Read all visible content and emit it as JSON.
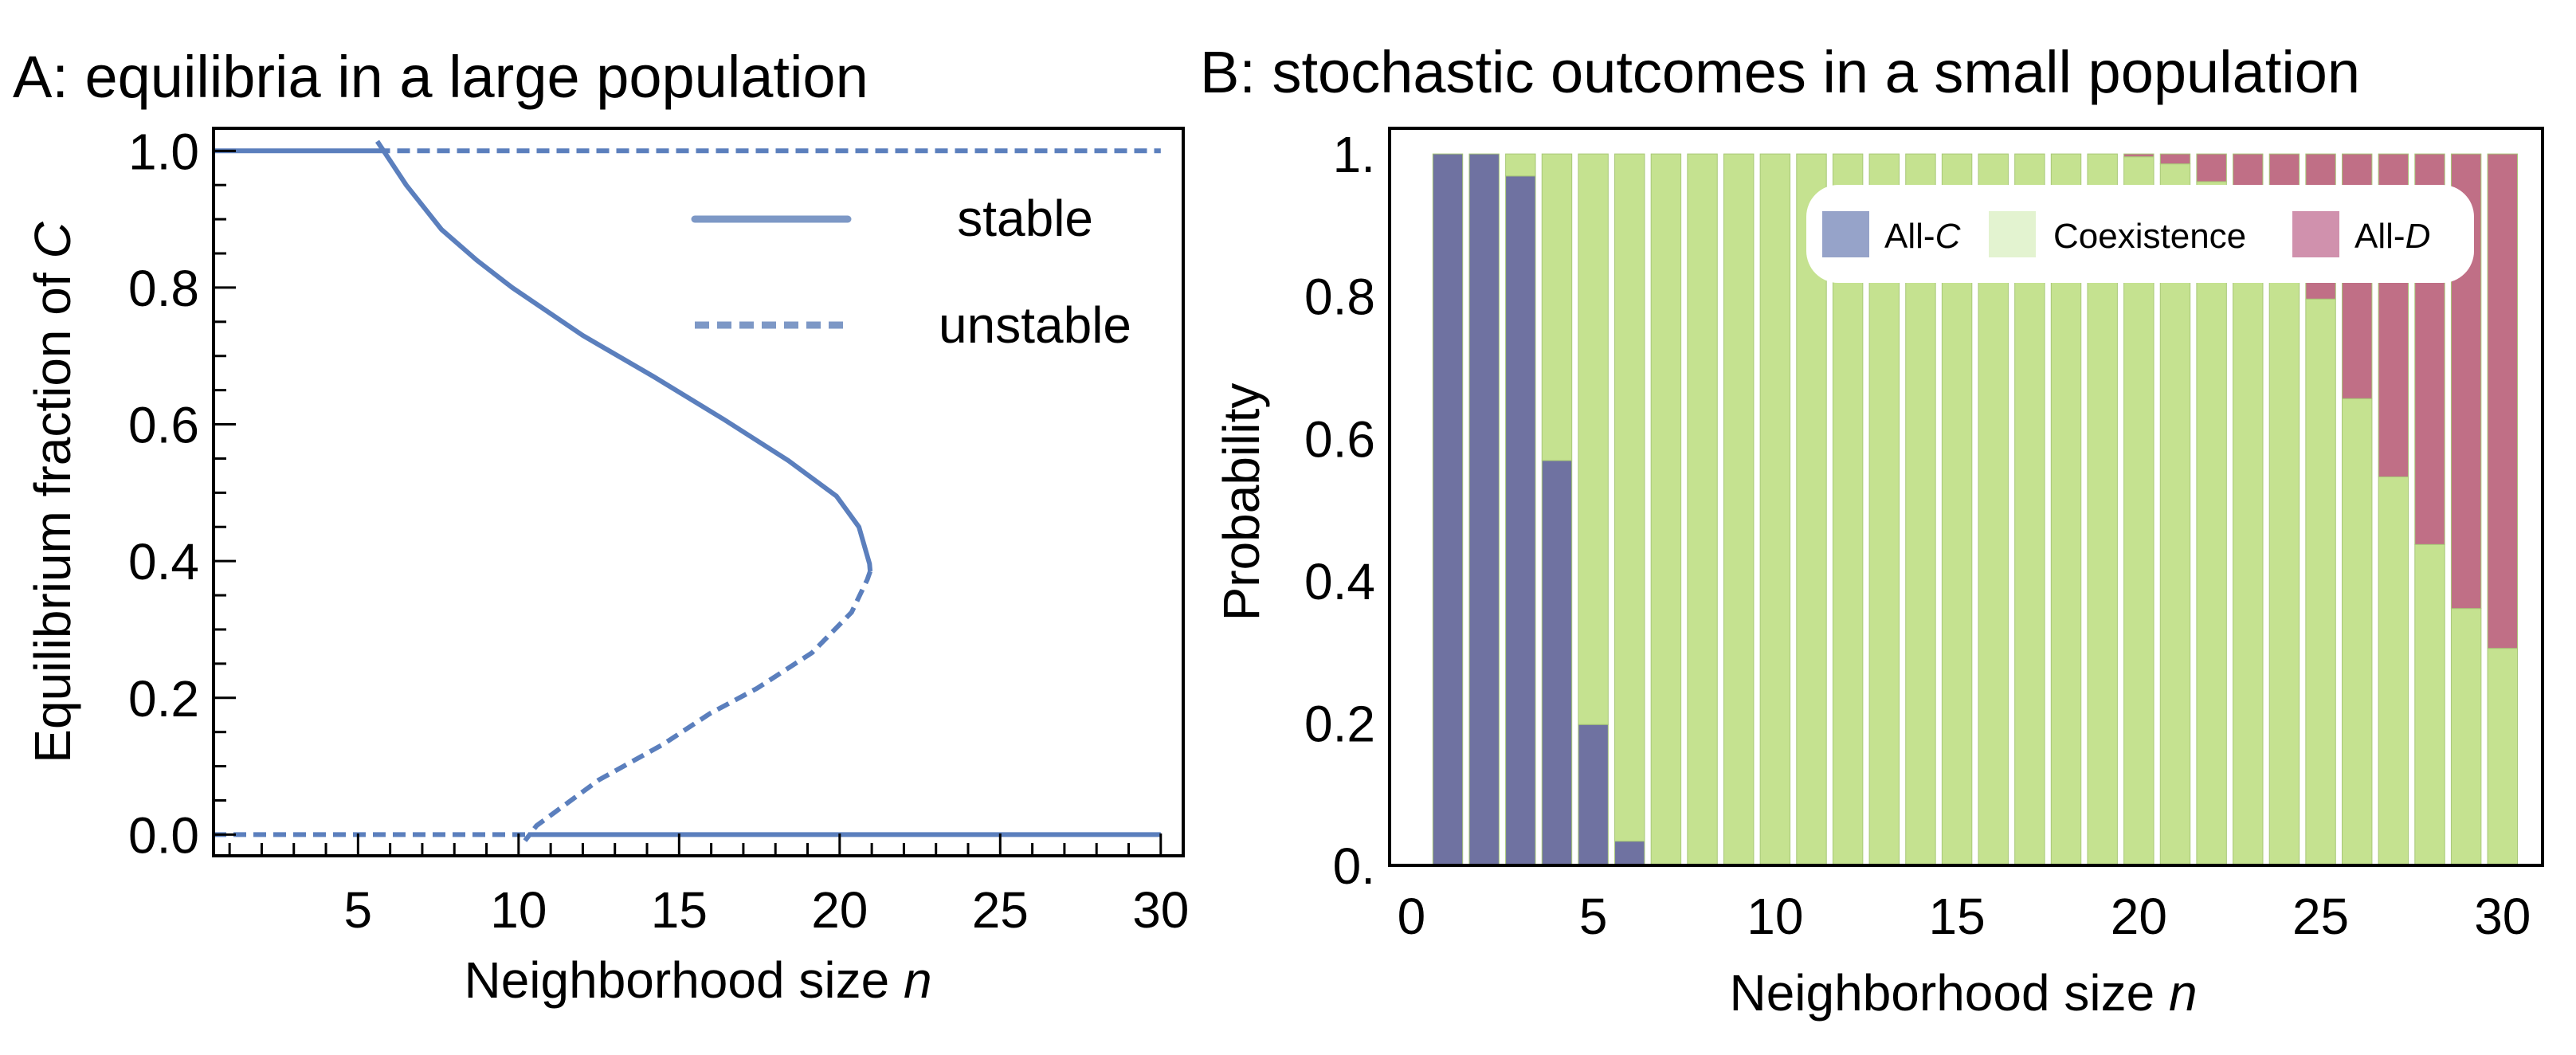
{
  "chart_data": [
    {
      "type": "line",
      "title": "A: equilibria in a large population",
      "xlabel": "Neighborhood size",
      "xlabel_var": "n",
      "ylabel": "Equilibrium fraction of",
      "ylabel_var": "C",
      "xlim": [
        0.5,
        30.7
      ],
      "ylim": [
        -0.031,
        1.033
      ],
      "xticks": [
        5,
        10,
        15,
        20,
        25,
        30
      ],
      "yticks": [
        "0.0",
        "0.2",
        "0.4",
        "0.6",
        "0.8",
        "1.0"
      ],
      "grid": false,
      "legend_position": "top-right",
      "line_color": "#5b7fbd",
      "legend": [
        {
          "label": "stable",
          "style": "solid"
        },
        {
          "label": "unstable",
          "style": "dashed"
        }
      ],
      "series": [
        {
          "name": "stable",
          "style": "solid",
          "points": [
            [
              0.5,
              1
            ],
            [
              5.6,
              1
            ]
          ]
        },
        {
          "name": "unstable",
          "style": "dashed",
          "points": [
            [
              5.6,
              1
            ],
            [
              30,
              1
            ]
          ]
        },
        {
          "name": "stable",
          "style": "solid",
          "points": [
            [
              5.6,
              1.014
            ],
            [
              6.5,
              0.95
            ],
            [
              7.6,
              0.885
            ],
            [
              8.7,
              0.84
            ],
            [
              9.8,
              0.8
            ],
            [
              12.0,
              0.73
            ],
            [
              14.2,
              0.67
            ],
            [
              16.4,
              0.607
            ],
            [
              18.4,
              0.547
            ],
            [
              19.9,
              0.495
            ],
            [
              20.6,
              0.45
            ],
            [
              20.93,
              0.396
            ],
            [
              20.95,
              0.385
            ]
          ]
        },
        {
          "name": "unstable",
          "style": "dashed",
          "points": [
            [
              20.95,
              0.385
            ],
            [
              20.86,
              0.373
            ],
            [
              20.37,
              0.325
            ],
            [
              19.14,
              0.266
            ],
            [
              17.43,
              0.214
            ],
            [
              15.96,
              0.177
            ],
            [
              14.5,
              0.132
            ],
            [
              12.5,
              0.08
            ],
            [
              10.56,
              0.013
            ],
            [
              10.2,
              -0.009
            ]
          ]
        },
        {
          "name": "unstable",
          "style": "dashed",
          "points": [
            [
              0.5,
              0
            ],
            [
              10.3,
              0
            ]
          ]
        },
        {
          "name": "stable",
          "style": "solid",
          "points": [
            [
              10.3,
              0
            ],
            [
              30,
              0
            ]
          ]
        }
      ]
    },
    {
      "type": "bar",
      "stacked": true,
      "title": "B: stochastic outcomes in a small population",
      "xlabel": "Neighborhood size",
      "xlabel_var": "n",
      "ylabel": "Probability",
      "xlim": [
        -0.6,
        31.1
      ],
      "ylim": [
        0,
        1.036
      ],
      "xticks": [
        "0",
        "5",
        "10",
        "15",
        "20",
        "25",
        "30"
      ],
      "yticks": [
        "0.",
        "0.2",
        "0.4",
        "0.6",
        "0.8",
        "1."
      ],
      "grid": false,
      "legend_position": "top-right",
      "categories": [
        1,
        2,
        3,
        4,
        5,
        6,
        7,
        8,
        9,
        10,
        11,
        12,
        13,
        14,
        15,
        16,
        17,
        18,
        19,
        20,
        21,
        22,
        23,
        24,
        25,
        26,
        27,
        28,
        29,
        30
      ],
      "series": [
        {
          "name": "All-C",
          "name_prefix": "All-",
          "name_var": "C",
          "color": "#6f72a1",
          "legend_color": "#96a3c9",
          "values": [
            1,
            1,
            0.969,
            0.569,
            0.198,
            0.034,
            0,
            0,
            0,
            0,
            0,
            0,
            0,
            0,
            0,
            0,
            0,
            0,
            0,
            0,
            0,
            0,
            0,
            0,
            0,
            0,
            0,
            0,
            0,
            0
          ]
        },
        {
          "name": "Coexistence",
          "color": "#c5e290",
          "legend_color": "#e3f3d0",
          "values": [
            0,
            0,
            0.031,
            0.431,
            0.802,
            0.966,
            1,
            1,
            1,
            1,
            1,
            1,
            1,
            1,
            1,
            1,
            1,
            1,
            1,
            0.996,
            0.986,
            0.961,
            0.891,
            0.862,
            0.796,
            0.656,
            0.546,
            0.451,
            0.361,
            0.305
          ]
        },
        {
          "name": "All-D",
          "name_prefix": "All-",
          "name_var": "D",
          "color": "#c06f86",
          "legend_color": "#d091ad",
          "values": [
            0,
            0,
            0,
            0,
            0,
            0,
            0,
            0,
            0,
            0,
            0,
            0,
            0,
            0,
            0,
            0,
            0,
            0,
            0,
            0.004,
            0.014,
            0.039,
            0.109,
            0.138,
            0.204,
            0.344,
            0.454,
            0.549,
            0.639,
            0.695
          ]
        }
      ]
    }
  ]
}
